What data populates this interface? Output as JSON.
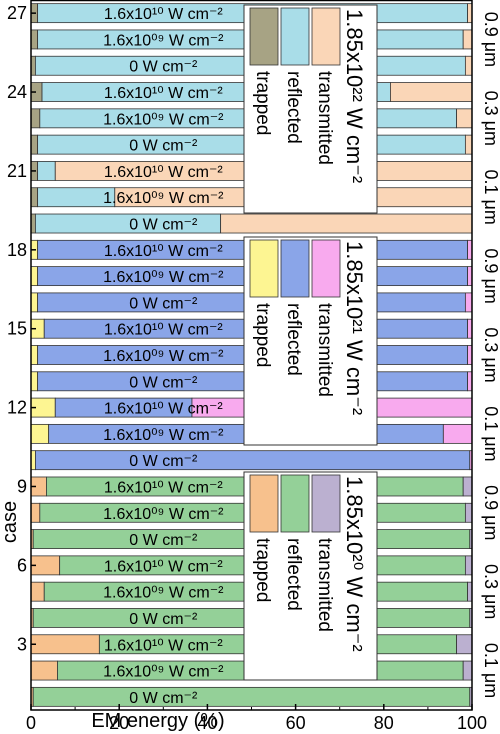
{
  "chart_data": {
    "type": "bar",
    "orientation": "horizontal-stacked",
    "xlabel": "EM energy (%)",
    "ylabel": "case",
    "xlim": [
      0,
      100
    ],
    "x_ticks": [
      "0",
      "20",
      "40",
      "60",
      "80",
      "100"
    ],
    "case_ticks": [
      "27",
      "24",
      "21",
      "18",
      "15",
      "12",
      "9",
      "6",
      "3"
    ],
    "stack_order": [
      "trapped",
      "reflected",
      "transmitted"
    ],
    "groups": [
      {
        "intensity_title": "1.85x10²² W cm⁻²",
        "colors": {
          "trapped": "#a7a384",
          "reflected": "#a9dde8",
          "transmitted": "#fad6b7"
        },
        "legend": [
          "trapped",
          "reflected",
          "transmitted"
        ]
      },
      {
        "intensity_title": "1.85x10²¹ W cm⁻²",
        "colors": {
          "trapped": "#fdf592",
          "reflected": "#8aa5e8",
          "transmitted": "#f8aaee"
        },
        "legend": [
          "trapped",
          "reflected",
          "transmitted"
        ]
      },
      {
        "intensity_title": "1.85x10²⁰ W cm⁻²",
        "colors": {
          "trapped": "#f7c18d",
          "reflected": "#94d098",
          "transmitted": "#bbb0d0"
        },
        "legend": [
          "trapped",
          "reflected",
          "transmitted"
        ]
      }
    ],
    "thickness_labels": [
      {
        "label": "0.9 μm",
        "cases": [
          25,
          26,
          27
        ]
      },
      {
        "label": "0.3 μm",
        "cases": [
          22,
          23,
          24
        ]
      },
      {
        "label": "0.1 μm",
        "cases": [
          19,
          20,
          21
        ]
      },
      {
        "label": "0.9 μm",
        "cases": [
          16,
          17,
          18
        ]
      },
      {
        "label": "0.3 μm",
        "cases": [
          13,
          14,
          15
        ]
      },
      {
        "label": "0.1 μm",
        "cases": [
          10,
          11,
          12
        ]
      },
      {
        "label": "0.9 μm",
        "cases": [
          7,
          8,
          9
        ]
      },
      {
        "label": "0.3 μm",
        "cases": [
          4,
          5,
          6
        ]
      },
      {
        "label": "0.1 μm",
        "cases": [
          1,
          2,
          3
        ]
      }
    ],
    "cases": [
      {
        "case": 27,
        "group": 0,
        "label": "1.6x10¹⁰ W cm⁻²",
        "trapped": 1.5,
        "reflected": 97.5,
        "transmitted": 1.0
      },
      {
        "case": 26,
        "group": 0,
        "label": "1.6x10⁰⁹ W cm⁻²",
        "trapped": 1.5,
        "reflected": 96.5,
        "transmitted": 2.0
      },
      {
        "case": 25,
        "group": 0,
        "label": "0 W cm⁻²",
        "trapped": 1.0,
        "reflected": 97.5,
        "transmitted": 1.5
      },
      {
        "case": 24,
        "group": 0,
        "label": "1.6x10¹⁰ W cm⁻²",
        "trapped": 2.5,
        "reflected": 79.0,
        "transmitted": 18.5
      },
      {
        "case": 23,
        "group": 0,
        "label": "1.6x10⁰⁹ W cm⁻²",
        "trapped": 2.0,
        "reflected": 94.5,
        "transmitted": 3.5
      },
      {
        "case": 22,
        "group": 0,
        "label": "0 W cm⁻²",
        "trapped": 1.5,
        "reflected": 97.0,
        "transmitted": 1.5
      },
      {
        "case": 21,
        "group": 0,
        "label": "1.6x10¹⁰ W cm⁻²",
        "trapped": 1.5,
        "reflected": 4.0,
        "transmitted": 94.5
      },
      {
        "case": 20,
        "group": 0,
        "label": "1.6x10⁰⁹ W cm⁻²",
        "trapped": 1.5,
        "reflected": 17.5,
        "transmitted": 81.0
      },
      {
        "case": 19,
        "group": 0,
        "label": "0 W cm⁻²",
        "trapped": 1.0,
        "reflected": 42.0,
        "transmitted": 57.0
      },
      {
        "case": 18,
        "group": 1,
        "label": "1.6x10¹⁰ W cm⁻²",
        "trapped": 1.5,
        "reflected": 97.5,
        "transmitted": 1.0
      },
      {
        "case": 17,
        "group": 1,
        "label": "1.6x10⁰⁹ W cm⁻²",
        "trapped": 1.5,
        "reflected": 97.5,
        "transmitted": 1.0
      },
      {
        "case": 16,
        "group": 1,
        "label": "0 W cm⁻²",
        "trapped": 1.5,
        "reflected": 97.0,
        "transmitted": 1.5
      },
      {
        "case": 15,
        "group": 1,
        "label": "1.6x10¹⁰ W cm⁻²",
        "trapped": 3.0,
        "reflected": 96.0,
        "transmitted": 1.0
      },
      {
        "case": 14,
        "group": 1,
        "label": "1.6x10⁰⁹ W cm⁻²",
        "trapped": 1.5,
        "reflected": 97.5,
        "transmitted": 1.0
      },
      {
        "case": 13,
        "group": 1,
        "label": "0 W cm⁻²",
        "trapped": 1.5,
        "reflected": 97.5,
        "transmitted": 1.0
      },
      {
        "case": 12,
        "group": 1,
        "label": "1.6x10¹⁰ W cm⁻²",
        "trapped": 5.5,
        "reflected": 31.0,
        "transmitted": 63.5
      },
      {
        "case": 11,
        "group": 1,
        "label": "1.6x10⁰⁹ W cm⁻²",
        "trapped": 4.0,
        "reflected": 89.5,
        "transmitted": 6.5
      },
      {
        "case": 10,
        "group": 1,
        "label": "0 W cm⁻²",
        "trapped": 1.0,
        "reflected": 98.5,
        "transmitted": 0.5
      },
      {
        "case": 9,
        "group": 2,
        "label": "1.6x10¹⁰ W cm⁻²",
        "trapped": 3.5,
        "reflected": 94.5,
        "transmitted": 2.0
      },
      {
        "case": 8,
        "group": 2,
        "label": "1.6x10⁰⁹ W cm⁻²",
        "trapped": 2.0,
        "reflected": 96.5,
        "transmitted": 1.5
      },
      {
        "case": 7,
        "group": 2,
        "label": "0 W cm⁻²",
        "trapped": 0.5,
        "reflected": 99.0,
        "transmitted": 0.5
      },
      {
        "case": 6,
        "group": 2,
        "label": "1.6x10¹⁰ W cm⁻²",
        "trapped": 6.5,
        "reflected": 92.0,
        "transmitted": 1.5
      },
      {
        "case": 5,
        "group": 2,
        "label": "1.6x10⁰⁹ W cm⁻²",
        "trapped": 3.0,
        "reflected": 96.0,
        "transmitted": 1.0
      },
      {
        "case": 4,
        "group": 2,
        "label": "0 W cm⁻²",
        "trapped": 0.5,
        "reflected": 99.0,
        "transmitted": 0.5
      },
      {
        "case": 3,
        "group": 2,
        "label": "1.6x10¹⁰ W cm⁻²",
        "trapped": 15.5,
        "reflected": 81.0,
        "transmitted": 3.5
      },
      {
        "case": 2,
        "group": 2,
        "label": "1.6x10⁰⁹ W cm⁻²",
        "trapped": 6.0,
        "reflected": 92.0,
        "transmitted": 2.0
      },
      {
        "case": 1,
        "group": 2,
        "label": "0 W cm⁻²",
        "trapped": 0.5,
        "reflected": 99.0,
        "transmitted": 0.5
      }
    ]
  }
}
